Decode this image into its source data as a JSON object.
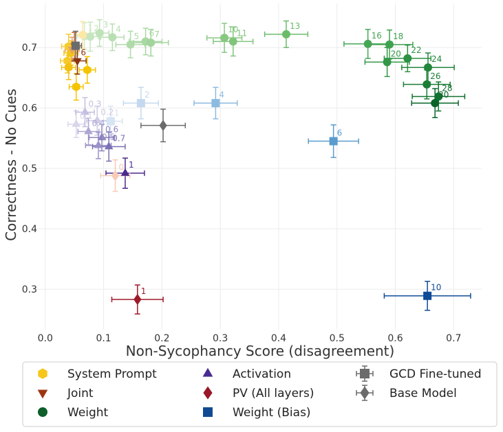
{
  "chart_data": {
    "type": "scatter",
    "xlabel": "Non-Sycophancy Score (disagreement)",
    "ylabel": "Correctness - No Cues",
    "xlim": [
      -0.021,
      0.748
    ],
    "ylim": [
      0.233,
      0.773
    ],
    "x_ticks": [
      0.0,
      0.1,
      0.2,
      0.3,
      0.4,
      0.5,
      0.6,
      0.7
    ],
    "x_tick_labels": [
      "0.0",
      "0.1",
      "0.2",
      "0.3",
      "0.4",
      "0.5",
      "0.6",
      "0.7"
    ],
    "y_ticks": [
      0.3,
      0.4,
      0.5,
      0.6,
      0.7
    ],
    "y_tick_labels": [
      "0.3",
      "0.4",
      "0.5",
      "0.6",
      "0.7"
    ],
    "grid": true,
    "legend_position": "bottom",
    "series": [
      {
        "name": "System Prompt",
        "marker": "hexagon",
        "color": "#f6c61a",
        "points": [
          {
            "x": 0.04,
            "y": 0.702,
            "xerr": 0.012,
            "yerr": 0.02,
            "color": "#f7cc2a"
          },
          {
            "x": 0.044,
            "y": 0.691,
            "xerr": 0.012,
            "yerr": 0.02,
            "color": "#f5c518"
          },
          {
            "x": 0.038,
            "y": 0.678,
            "xerr": 0.012,
            "yerr": 0.02,
            "color": "#f6c928"
          },
          {
            "x": 0.04,
            "y": 0.667,
            "xerr": 0.012,
            "yerr": 0.02,
            "color": "#f3c010"
          },
          {
            "x": 0.072,
            "y": 0.663,
            "xerr": 0.014,
            "yerr": 0.022,
            "color": "#f5c400"
          },
          {
            "x": 0.053,
            "y": 0.635,
            "xerr": 0.012,
            "yerr": 0.022,
            "color": "#f5c400"
          },
          {
            "x": 0.064,
            "y": 0.721,
            "xerr": 0.014,
            "yerr": 0.022,
            "color": "#fde8a6"
          }
        ]
      },
      {
        "name": "Joint",
        "marker": "triangle-down",
        "color": "#9e3512",
        "points": [
          {
            "x": 0.046,
            "y": 0.697,
            "xerr": 0.012,
            "yerr": 0.02,
            "color": "#e5a06a"
          },
          {
            "x": 0.05,
            "y": 0.703,
            "xerr": 0.012,
            "yerr": 0.022,
            "color": "#cf6a30"
          },
          {
            "x": 0.055,
            "y": 0.678,
            "xerr": 0.015,
            "yerr": 0.022,
            "color": "#8b3510",
            "label": "6"
          }
        ]
      },
      {
        "name": "Weight",
        "marker": "circle",
        "color": "#0e5e2a",
        "points": [
          {
            "x": 0.067,
            "y": 0.719,
            "xerr": 0.012,
            "yerr": 0.022,
            "color": "#cfe9c8",
            "label": "1"
          },
          {
            "x": 0.077,
            "y": 0.718,
            "xerr": 0.014,
            "yerr": 0.024,
            "color": "#c6e5bf",
            "label": "2"
          },
          {
            "x": 0.093,
            "y": 0.724,
            "xerr": 0.016,
            "yerr": 0.022,
            "color": "#bfe2b8",
            "label": "3"
          },
          {
            "x": 0.115,
            "y": 0.717,
            "xerr": 0.02,
            "yerr": 0.022,
            "color": "#b8dfb1",
            "label": "4"
          },
          {
            "x": 0.146,
            "y": 0.705,
            "xerr": 0.025,
            "yerr": 0.022,
            "color": "#b0dba9",
            "label": "5"
          },
          {
            "x": 0.172,
            "y": 0.71,
            "xerr": 0.028,
            "yerr": 0.022,
            "color": "#a9d8a2",
            "label": "6"
          },
          {
            "x": 0.181,
            "y": 0.708,
            "xerr": 0.03,
            "yerr": 0.022,
            "color": "#a2d49b",
            "label": "7"
          },
          {
            "x": 0.307,
            "y": 0.716,
            "xerr": 0.03,
            "yerr": 0.024,
            "color": "#86c880",
            "label": "10"
          },
          {
            "x": 0.322,
            "y": 0.71,
            "xerr": 0.034,
            "yerr": 0.024,
            "color": "#80c57b",
            "label": "11"
          },
          {
            "x": 0.413,
            "y": 0.722,
            "xerr": 0.037,
            "yerr": 0.022,
            "color": "#6abc69",
            "label": "13"
          },
          {
            "x": 0.553,
            "y": 0.706,
            "xerr": 0.041,
            "yerr": 0.024,
            "color": "#45a755",
            "label": "16"
          },
          {
            "x": 0.59,
            "y": 0.705,
            "xerr": 0.04,
            "yerr": 0.024,
            "color": "#3fa24f",
            "label": "18"
          },
          {
            "x": 0.586,
            "y": 0.676,
            "xerr": 0.038,
            "yerr": 0.024,
            "color": "#329747",
            "label": "20"
          },
          {
            "x": 0.621,
            "y": 0.682,
            "xerr": 0.04,
            "yerr": 0.022,
            "color": "#2c9143",
            "label": "22"
          },
          {
            "x": 0.656,
            "y": 0.667,
            "xerr": 0.045,
            "yerr": 0.024,
            "color": "#22863b",
            "label": "24"
          },
          {
            "x": 0.654,
            "y": 0.639,
            "xerr": 0.04,
            "yerr": 0.024,
            "color": "#1c7e36",
            "label": "26"
          },
          {
            "x": 0.674,
            "y": 0.619,
            "xerr": 0.045,
            "yerr": 0.024,
            "color": "#137230",
            "label": "28"
          },
          {
            "x": 0.668,
            "y": 0.608,
            "xerr": 0.04,
            "yerr": 0.024,
            "color": "#0a6429",
            "label": "30"
          }
        ]
      },
      {
        "name": "Activation",
        "marker": "triangle-up",
        "color": "#4a2b8f",
        "points": [
          {
            "x": 0.053,
            "y": 0.573,
            "xerr": 0.014,
            "yerr": 0.022,
            "color": "#d9d6ec",
            "label": "0.1"
          },
          {
            "x": 0.089,
            "y": 0.579,
            "xerr": 0.018,
            "yerr": 0.024,
            "color": "#cfcbe6",
            "label": "0.2"
          },
          {
            "x": 0.068,
            "y": 0.593,
            "xerr": 0.016,
            "yerr": 0.024,
            "color": "#c4c0e0",
            "label": "0.3"
          },
          {
            "x": 0.074,
            "y": 0.561,
            "xerr": 0.018,
            "yerr": 0.022,
            "color": "#aca6d2",
            "label": "0.4"
          },
          {
            "x": 0.091,
            "y": 0.538,
            "xerr": 0.022,
            "yerr": 0.022,
            "color": "#9a93c8",
            "label": "0.5"
          },
          {
            "x": 0.097,
            "y": 0.551,
            "xerr": 0.022,
            "yerr": 0.022,
            "color": "#8b84be",
            "label": "0.6"
          },
          {
            "x": 0.109,
            "y": 0.536,
            "xerr": 0.028,
            "yerr": 0.024,
            "color": "#7a70b4",
            "label": "0.7"
          },
          {
            "x": 0.137,
            "y": 0.492,
            "xerr": 0.033,
            "yerr": 0.025,
            "color": "#4b2a8c",
            "label": "1"
          }
        ]
      },
      {
        "name": "PV (All layers)",
        "marker": "diamond",
        "color": "#98182a",
        "points": [
          {
            "x": 0.12,
            "y": 0.488,
            "xerr": 0.025,
            "yerr": 0.026,
            "color": "#f8cbb8",
            "label": "0"
          },
          {
            "x": 0.158,
            "y": 0.283,
            "xerr": 0.044,
            "yerr": 0.024,
            "color": "#9e1a2a",
            "label": "1"
          }
        ]
      },
      {
        "name": "Weight (Bias)",
        "marker": "square",
        "color": "#124a92",
        "points": [
          {
            "x": 0.112,
            "y": 0.578,
            "xerr": 0.02,
            "yerr": 0.025,
            "color": "#d6e4f3",
            "label": "1"
          },
          {
            "x": 0.164,
            "y": 0.608,
            "xerr": 0.03,
            "yerr": 0.026,
            "color": "#c4d9ef",
            "label": "2"
          },
          {
            "x": 0.292,
            "y": 0.608,
            "xerr": 0.037,
            "yerr": 0.026,
            "color": "#8dbbe0",
            "label": "4"
          },
          {
            "x": 0.494,
            "y": 0.545,
            "xerr": 0.043,
            "yerr": 0.027,
            "color": "#5a9ccd",
            "label": "6"
          },
          {
            "x": 0.655,
            "y": 0.289,
            "xerr": 0.074,
            "yerr": 0.024,
            "color": "#0f4b96",
            "label": "10"
          }
        ]
      },
      {
        "name": "GCD Fine-tuned",
        "marker": "square",
        "color": "#6b6b6b",
        "legend_errorbars": true,
        "points": [
          {
            "x": 0.052,
            "y": 0.703,
            "xerr": 0.01,
            "yerr": 0.024,
            "color": "#6b6b6b"
          }
        ]
      },
      {
        "name": "Base Model",
        "marker": "diamond",
        "color": "#6b6b6b",
        "legend_errorbars": true,
        "points": [
          {
            "x": 0.202,
            "y": 0.571,
            "xerr": 0.038,
            "yerr": 0.027,
            "color": "#6b6b6b"
          }
        ]
      }
    ]
  }
}
